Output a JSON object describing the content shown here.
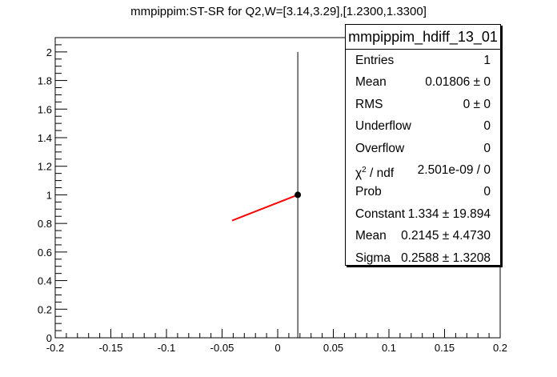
{
  "chart_data": {
    "type": "scatter",
    "title": "mmpippim:ST-SR for Q2,W=[3.14,3.29],[1.2300,1.3300]",
    "xlim": [
      -0.2,
      0.2
    ],
    "ylim": [
      0,
      2.1
    ],
    "x_ticks": [
      "-0.2",
      "-0.15",
      "-0.1",
      "-0.05",
      "0",
      "0.05",
      "0.1",
      "0.15",
      "0.2"
    ],
    "x_tick_values": [
      -0.2,
      -0.15,
      -0.1,
      -0.05,
      0,
      0.05,
      0.1,
      0.15,
      0.2
    ],
    "y_ticks": [
      "0",
      "0.2",
      "0.4",
      "0.6",
      "0.8",
      "1",
      "1.2",
      "1.4",
      "1.6",
      "1.8",
      "2"
    ],
    "y_tick_values": [
      0,
      0.2,
      0.4,
      0.6,
      0.8,
      1,
      1.2,
      1.4,
      1.6,
      1.8,
      2
    ],
    "points": [
      {
        "x": 0.01806,
        "y": 1.0,
        "error_y": 1.0
      }
    ],
    "fit_line": {
      "x": [
        -0.041,
        0.01806
      ],
      "y": [
        0.82,
        1.0
      ],
      "color": "#ff0000"
    },
    "marker_color": "#000000",
    "grid": false
  },
  "stats": {
    "title": "mmpippim_hdiff_13_01",
    "rows": [
      {
        "label": "Entries",
        "value": "1"
      },
      {
        "label": "Mean",
        "value": "0.01806 ±      0"
      },
      {
        "label": "RMS",
        "value": "0 ±      0"
      },
      {
        "label": "Underflow",
        "value": "0"
      },
      {
        "label": "Overflow",
        "value": "0"
      },
      {
        "label": "χ2 / ndf",
        "value": "2.501e-09 / 0"
      },
      {
        "label": "Prob",
        "value": "0"
      },
      {
        "label": "Constant",
        "value": "1.334 ± 19.894"
      },
      {
        "label": "Mean",
        "value": "0.2145 ± 4.4730"
      },
      {
        "label": "Sigma",
        "value": "0.2588 ± 1.3208"
      }
    ]
  }
}
